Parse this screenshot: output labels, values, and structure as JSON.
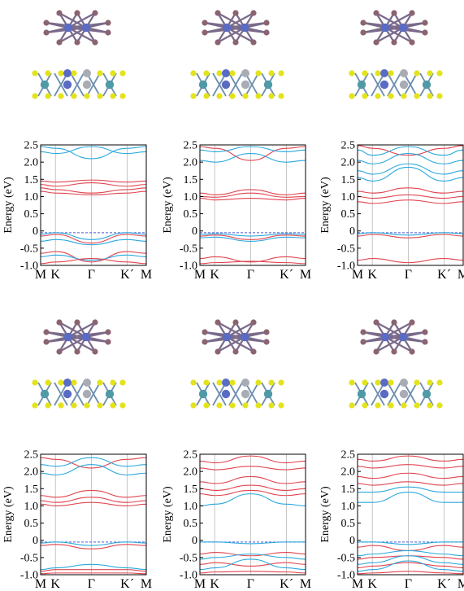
{
  "colors": {
    "metal_atom": "#5a6bc4",
    "chalcogen_top": "#8a6470",
    "sulfur": "#e3e31c",
    "teal_atom": "#4f9aa6",
    "grey_atom": "#a9acb4",
    "bond_top": "#7a6a8a",
    "bond_side": "#6e8fb0",
    "band_red": "#e0444f",
    "band_blue": "#2aa8de",
    "fermi": "#4a5ad0",
    "kpath_line": "#b8b8b8"
  },
  "icons": [
    "top-view-structure",
    "side-view-structure"
  ],
  "chart_data": [
    {
      "type": "line",
      "panel": "top-left",
      "ylabel": "Energy (eV)",
      "ylim": [
        -1.0,
        2.5
      ],
      "yticks": [
        "2.5",
        "2.0",
        "1.5",
        "1.0",
        "0.5",
        "0",
        "-0.5",
        "-1.0"
      ],
      "kpoints": [
        "M",
        "K",
        "Γ",
        "K´",
        "M"
      ],
      "fermi_level": -0.05,
      "bands": [
        {
          "color": "red",
          "values": [
            1.45,
            1.42,
            1.48,
            1.42,
            1.45
          ]
        },
        {
          "color": "red",
          "values": [
            1.35,
            1.3,
            1.4,
            1.3,
            1.35
          ]
        },
        {
          "color": "red",
          "values": [
            1.25,
            1.2,
            1.1,
            1.2,
            1.25
          ]
        },
        {
          "color": "red",
          "values": [
            1.15,
            1.1,
            1.05,
            1.1,
            1.15
          ]
        },
        {
          "color": "blue",
          "values": [
            2.45,
            2.4,
            2.1,
            2.4,
            2.45
          ]
        },
        {
          "color": "blue",
          "values": [
            2.3,
            2.25,
            2.45,
            2.25,
            2.3
          ]
        },
        {
          "color": "blue",
          "values": [
            -0.1,
            -0.05,
            -0.25,
            -0.05,
            -0.1
          ]
        },
        {
          "color": "red",
          "values": [
            -0.15,
            -0.1,
            -0.35,
            -0.1,
            -0.15
          ]
        },
        {
          "color": "blue",
          "values": [
            -0.3,
            -0.25,
            -0.4,
            -0.25,
            -0.3
          ]
        },
        {
          "color": "red",
          "values": [
            -0.65,
            -0.6,
            -0.9,
            -0.6,
            -0.65
          ]
        },
        {
          "color": "blue",
          "values": [
            -0.75,
            -0.7,
            -0.85,
            -0.7,
            -0.75
          ]
        },
        {
          "color": "red",
          "values": [
            -0.95,
            -0.9,
            -0.8,
            -0.9,
            -0.95
          ]
        }
      ]
    },
    {
      "type": "line",
      "panel": "top-middle",
      "ylabel": "Energy (eV)",
      "ylim": [
        -1.0,
        2.5
      ],
      "yticks": [
        "2.5",
        "2.0",
        "1.5",
        "1.0",
        "0.5",
        "0",
        "-0.5",
        "-1.0"
      ],
      "kpoints": [
        "M",
        "K",
        "Γ",
        "K´",
        "M"
      ],
      "fermi_level": -0.05,
      "bands": [
        {
          "color": "red",
          "values": [
            1.1,
            1.05,
            1.2,
            1.05,
            1.1
          ]
        },
        {
          "color": "red",
          "values": [
            1.0,
            0.98,
            1.1,
            0.98,
            1.0
          ]
        },
        {
          "color": "red",
          "values": [
            0.95,
            0.9,
            0.95,
            0.9,
            0.95
          ]
        },
        {
          "color": "red",
          "values": [
            2.45,
            2.4,
            2.05,
            2.4,
            2.45
          ]
        },
        {
          "color": "blue",
          "values": [
            2.35,
            2.3,
            2.45,
            2.3,
            2.35
          ]
        },
        {
          "color": "blue",
          "values": [
            2.05,
            2.0,
            2.25,
            2.0,
            2.05
          ]
        },
        {
          "color": "blue",
          "values": [
            -0.1,
            -0.08,
            -0.15,
            -0.08,
            -0.1
          ]
        },
        {
          "color": "red",
          "values": [
            -0.15,
            -0.12,
            -0.25,
            -0.12,
            -0.15
          ]
        },
        {
          "color": "blue",
          "values": [
            -0.2,
            -0.18,
            -0.3,
            -0.18,
            -0.2
          ]
        },
        {
          "color": "red",
          "values": [
            -0.8,
            -0.75,
            -0.9,
            -0.75,
            -0.8
          ]
        },
        {
          "color": "red",
          "values": [
            -0.95,
            -0.92,
            -0.88,
            -0.92,
            -0.95
          ]
        }
      ]
    },
    {
      "type": "line",
      "panel": "top-right",
      "ylabel": "Energy (eV)",
      "ylim": [
        -1.0,
        2.5
      ],
      "yticks": [
        "2.5",
        "2.0",
        "1.5",
        "1.0",
        "0.5",
        "0",
        "-0.5",
        "-1.0"
      ],
      "kpoints": [
        "M",
        "K",
        "Γ",
        "K´",
        "M"
      ],
      "fermi_level": -0.05,
      "bands": [
        {
          "color": "red",
          "values": [
            1.15,
            1.1,
            1.25,
            1.1,
            1.15
          ]
        },
        {
          "color": "red",
          "values": [
            1.0,
            0.95,
            1.05,
            0.95,
            1.0
          ]
        },
        {
          "color": "red",
          "values": [
            0.85,
            0.8,
            0.9,
            0.8,
            0.85
          ]
        },
        {
          "color": "red",
          "values": [
            2.48,
            2.4,
            2.2,
            2.4,
            2.48
          ]
        },
        {
          "color": "blue",
          "values": [
            2.35,
            2.2,
            2.45,
            2.2,
            2.35
          ]
        },
        {
          "color": "blue",
          "values": [
            2.05,
            1.95,
            2.25,
            1.95,
            2.05
          ]
        },
        {
          "color": "blue",
          "values": [
            1.75,
            1.65,
            1.95,
            1.65,
            1.75
          ]
        },
        {
          "color": "blue",
          "values": [
            1.55,
            1.45,
            1.85,
            1.45,
            1.55
          ]
        },
        {
          "color": "blue",
          "values": [
            -0.08,
            -0.05,
            -0.12,
            -0.05,
            -0.08
          ]
        },
        {
          "color": "red",
          "values": [
            -0.15,
            -0.1,
            -0.2,
            -0.1,
            -0.15
          ]
        },
        {
          "color": "red",
          "values": [
            -0.85,
            -0.8,
            -0.92,
            -0.8,
            -0.85
          ]
        }
      ]
    },
    {
      "type": "line",
      "panel": "bottom-left",
      "ylabel": "Energy (eV)",
      "ylim": [
        -1.0,
        2.5
      ],
      "yticks": [
        "2.5",
        "2.0",
        "1.5",
        "1.0",
        "0.5",
        "0",
        "-0.5",
        "-1.0"
      ],
      "kpoints": [
        "M",
        "K",
        "Γ",
        "K´",
        "M"
      ],
      "fermi_level": -0.05,
      "bands": [
        {
          "color": "red",
          "values": [
            1.3,
            1.25,
            1.45,
            1.25,
            1.3
          ]
        },
        {
          "color": "red",
          "values": [
            1.15,
            1.1,
            1.25,
            1.1,
            1.15
          ]
        },
        {
          "color": "red",
          "values": [
            1.05,
            1.0,
            1.1,
            1.0,
            1.05
          ]
        },
        {
          "color": "red",
          "values": [
            2.4,
            2.35,
            2.1,
            2.35,
            2.4
          ]
        },
        {
          "color": "blue",
          "values": [
            2.2,
            2.15,
            2.4,
            2.15,
            2.2
          ]
        },
        {
          "color": "blue",
          "values": [
            1.95,
            1.9,
            2.2,
            1.9,
            1.95
          ]
        },
        {
          "color": "blue",
          "values": [
            -0.08,
            -0.05,
            -0.15,
            -0.05,
            -0.08
          ]
        },
        {
          "color": "red",
          "values": [
            -0.15,
            -0.12,
            -0.25,
            -0.12,
            -0.15
          ]
        },
        {
          "color": "blue",
          "values": [
            -0.85,
            -0.8,
            -0.7,
            -0.8,
            -0.85
          ]
        },
        {
          "color": "red",
          "values": [
            -0.9,
            -0.85,
            -0.85,
            -0.85,
            -0.9
          ]
        },
        {
          "color": "red",
          "values": [
            -0.97,
            -0.95,
            -0.95,
            -0.95,
            -0.97
          ]
        }
      ]
    },
    {
      "type": "line",
      "panel": "bottom-middle",
      "ylabel": "Energy (eV)",
      "ylim": [
        -1.0,
        2.5
      ],
      "yticks": [
        "2.5",
        "2.0",
        "1.5",
        "1.0",
        "0.5",
        "0",
        "-0.5",
        "-1.0"
      ],
      "kpoints": [
        "M",
        "K",
        "Γ",
        "K´",
        "M"
      ],
      "fermi_level": -0.05,
      "bands": [
        {
          "color": "red",
          "values": [
            2.3,
            2.25,
            2.45,
            2.25,
            2.3
          ]
        },
        {
          "color": "red",
          "values": [
            2.1,
            2.05,
            2.15,
            2.05,
            2.1
          ]
        },
        {
          "color": "red",
          "values": [
            1.7,
            1.65,
            1.85,
            1.65,
            1.7
          ]
        },
        {
          "color": "red",
          "values": [
            1.5,
            1.45,
            1.6,
            1.45,
            1.5
          ]
        },
        {
          "color": "red",
          "values": [
            1.35,
            1.3,
            1.45,
            1.3,
            1.35
          ]
        },
        {
          "color": "blue",
          "values": [
            1.0,
            1.05,
            1.35,
            1.05,
            1.0
          ]
        },
        {
          "color": "blue",
          "values": [
            -0.05,
            -0.05,
            -0.1,
            -0.05,
            -0.05
          ]
        },
        {
          "color": "red",
          "values": [
            -0.4,
            -0.35,
            -0.45,
            -0.35,
            -0.4
          ]
        },
        {
          "color": "blue",
          "values": [
            -0.55,
            -0.5,
            -0.4,
            -0.5,
            -0.55
          ]
        },
        {
          "color": "red",
          "values": [
            -0.7,
            -0.65,
            -0.75,
            -0.65,
            -0.7
          ]
        },
        {
          "color": "blue",
          "values": [
            -0.85,
            -0.8,
            -0.55,
            -0.8,
            -0.85
          ]
        },
        {
          "color": "red",
          "values": [
            -0.95,
            -0.92,
            -0.9,
            -0.92,
            -0.95
          ]
        }
      ]
    },
    {
      "type": "line",
      "panel": "bottom-right",
      "ylabel": "Energy (eV)",
      "ylim": [
        -1.0,
        2.5
      ],
      "yticks": [
        "2.5",
        "2.0",
        "1.5",
        "1.0",
        "0.5",
        "0",
        "-0.5",
        "-1.0"
      ],
      "kpoints": [
        "M",
        "K",
        "Γ",
        "K´",
        "M"
      ],
      "fermi_level": -0.05,
      "bands": [
        {
          "color": "red",
          "values": [
            2.35,
            2.3,
            2.45,
            2.3,
            2.35
          ]
        },
        {
          "color": "red",
          "values": [
            2.15,
            2.1,
            2.2,
            2.1,
            2.15
          ]
        },
        {
          "color": "red",
          "values": [
            1.85,
            1.8,
            1.95,
            1.8,
            1.85
          ]
        },
        {
          "color": "red",
          "values": [
            1.65,
            1.6,
            1.7,
            1.6,
            1.65
          ]
        },
        {
          "color": "blue",
          "values": [
            1.4,
            1.4,
            1.55,
            1.4,
            1.4
          ]
        },
        {
          "color": "blue",
          "values": [
            1.1,
            1.1,
            1.4,
            1.1,
            1.1
          ]
        },
        {
          "color": "blue",
          "values": [
            -0.05,
            -0.05,
            -0.12,
            -0.05,
            -0.05
          ]
        },
        {
          "color": "red",
          "values": [
            -0.2,
            -0.15,
            -0.3,
            -0.15,
            -0.2
          ]
        },
        {
          "color": "blue",
          "values": [
            -0.45,
            -0.4,
            -0.3,
            -0.4,
            -0.45
          ]
        },
        {
          "color": "red",
          "values": [
            -0.55,
            -0.5,
            -0.45,
            -0.5,
            -0.55
          ]
        },
        {
          "color": "blue",
          "values": [
            -0.7,
            -0.65,
            -0.45,
            -0.65,
            -0.7
          ]
        },
        {
          "color": "red",
          "values": [
            -0.8,
            -0.75,
            -0.65,
            -0.75,
            -0.8
          ]
        },
        {
          "color": "blue",
          "values": [
            -0.9,
            -0.85,
            -0.6,
            -0.85,
            -0.9
          ]
        },
        {
          "color": "red",
          "values": [
            -0.97,
            -0.95,
            -0.9,
            -0.95,
            -0.97
          ]
        }
      ]
    }
  ]
}
